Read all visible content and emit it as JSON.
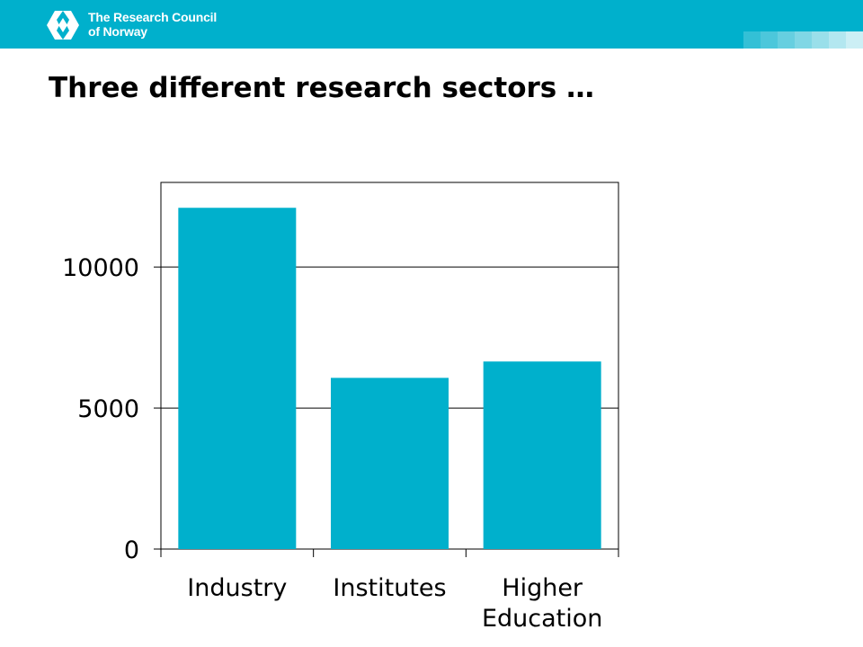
{
  "header": {
    "logo_icon": "research-council-logo-icon",
    "logo_line1": "The Research Council",
    "logo_line2": "of Norway",
    "background_color": "#00b0cc",
    "square_colors": [
      "#33c0d6",
      "#4cc7db",
      "#66cfe0",
      "#80d7e5",
      "#99dfea",
      "#b3e7f0",
      "#ccefF5"
    ]
  },
  "page": {
    "title": "Three different research sectors …"
  },
  "chart_data": {
    "type": "bar",
    "title": "",
    "xlabel": "",
    "ylabel": "",
    "categories": [
      [
        "Industry"
      ],
      [
        "Institutes"
      ],
      [
        "Higher",
        "Education"
      ]
    ],
    "values": [
      12100,
      6070,
      6650
    ],
    "ylim": [
      0,
      13000
    ],
    "yticks": [
      0,
      5000,
      10000
    ],
    "ytick_labels": [
      "0",
      "5000",
      "10000"
    ],
    "grid": true,
    "bar_color": "#00b0cc"
  }
}
